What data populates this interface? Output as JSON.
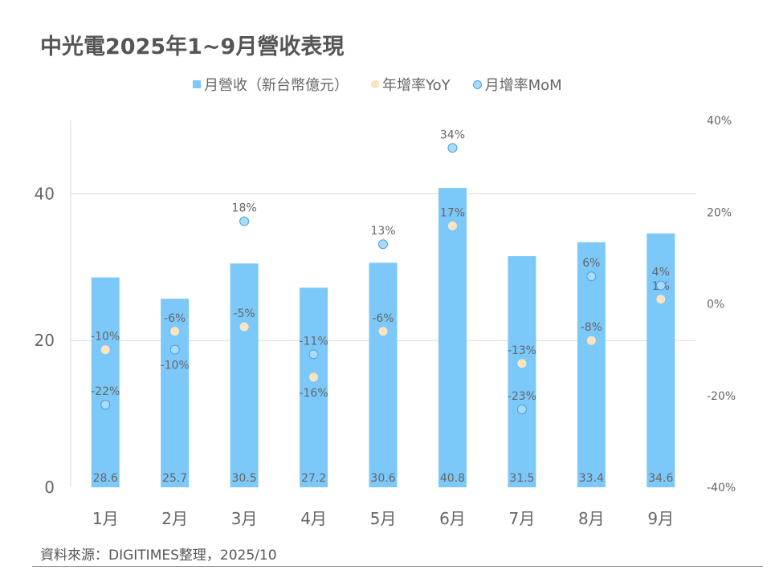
{
  "title": "中光電2025年1~9月營收表現",
  "source": "資料來源：DIGITIMES整理，2025/10",
  "colors": {
    "bar": "#7cc8f8",
    "yoy": "#fde4c0",
    "mom": "#a8dcfa",
    "mom_stroke": "#4a9fe0",
    "text": "#666666",
    "grid": "#d9d9d9"
  },
  "chart_data": {
    "type": "bar",
    "title": "中光電2025年1~9月營收表現",
    "categories": [
      "1月",
      "2月",
      "3月",
      "4月",
      "5月",
      "6月",
      "7月",
      "8月",
      "9月"
    ],
    "series": [
      {
        "name": "月營收（新台幣億元）",
        "type": "bar",
        "axis": "left",
        "values": [
          28.6,
          25.7,
          30.5,
          27.2,
          30.6,
          40.8,
          31.5,
          33.4,
          34.6
        ],
        "labels": [
          "28.6",
          "25.7",
          "30.5",
          "27.2",
          "30.6",
          "40.8",
          "31.5",
          "33.4",
          "34.6"
        ]
      },
      {
        "name": "年增率YoY",
        "type": "scatter",
        "axis": "right",
        "values": [
          -10,
          -6,
          -5,
          -16,
          -6,
          17,
          -13,
          -8,
          1
        ],
        "labels": [
          "-10%",
          "-6%",
          "-5%",
          "-16%",
          "-6%",
          "17%",
          "-13%",
          "-8%",
          "1%"
        ]
      },
      {
        "name": "月增率MoM",
        "type": "scatter",
        "axis": "right",
        "values": [
          -22,
          -10,
          18,
          -11,
          13,
          34,
          -23,
          6,
          4
        ],
        "labels": [
          "-22%",
          "-10%",
          "18%",
          "-11%",
          "13%",
          "34%",
          "-23%",
          "6%",
          "4%"
        ]
      }
    ],
    "left_axis": {
      "ylim": [
        0,
        50
      ],
      "ticks": [
        0,
        20,
        40
      ],
      "tick_labels": [
        "0",
        "20",
        "40"
      ]
    },
    "right_axis": {
      "ylim": [
        -40,
        40
      ],
      "ticks": [
        -40,
        -20,
        0,
        20,
        40
      ],
      "tick_labels": [
        "-40%",
        "-20%",
        "0%",
        "20%",
        "40%"
      ]
    },
    "legend": "top",
    "grid": true
  }
}
